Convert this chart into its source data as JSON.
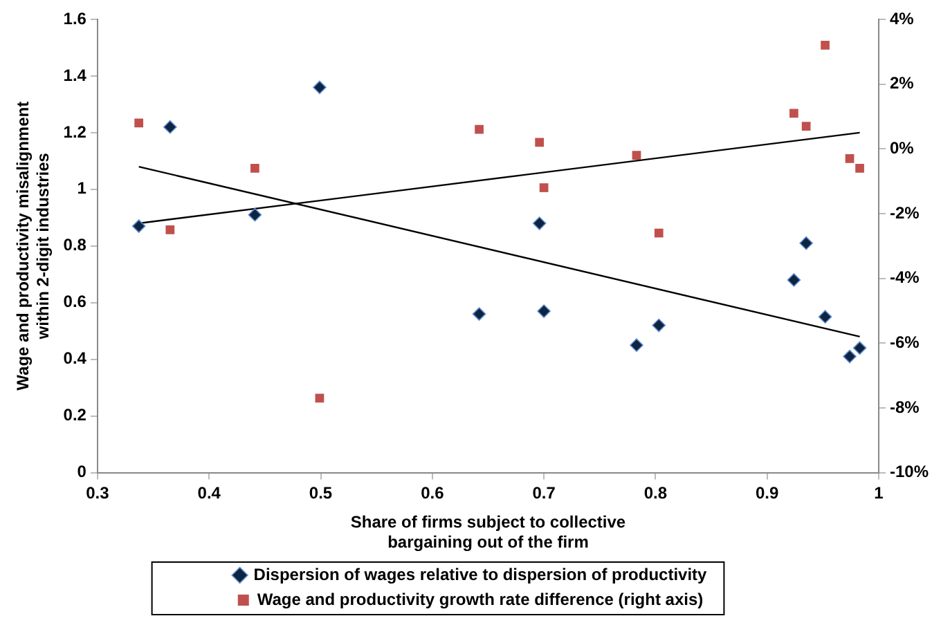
{
  "chart_data": {
    "type": "scatter",
    "xlabel": "Share of firms subject to collective bargaining out of the firm",
    "ylabel": "Wage and productivity misalignment within 2-digit industries",
    "xlim": [
      0.3,
      1
    ],
    "xticks": [
      0.3,
      0.4,
      0.5,
      0.6,
      0.7,
      0.8,
      0.9,
      1
    ],
    "ylim": [
      0,
      1.6
    ],
    "yticks": [
      0,
      0.2,
      0.4,
      0.6,
      0.8,
      1,
      1.2,
      1.4,
      1.6
    ],
    "y2lim": [
      -10,
      4
    ],
    "y2ticks": [
      {
        "value": -10,
        "label": "-10%"
      },
      {
        "value": -8,
        "label": "-8%"
      },
      {
        "value": -6,
        "label": "-6%"
      },
      {
        "value": -4,
        "label": "-4%"
      },
      {
        "value": -2,
        "label": "-2%"
      },
      {
        "value": 0,
        "label": "0%"
      },
      {
        "value": 2,
        "label": "2%"
      },
      {
        "value": 4,
        "label": "4%"
      }
    ],
    "grid": false,
    "legend": "bottom",
    "series": [
      {
        "name": "Dispersion of wages relative to dispersion of productivity",
        "color": "#0f2440",
        "marker": "diamond",
        "x": [
          0.337,
          0.365,
          0.441,
          0.499,
          0.642,
          0.696,
          0.7,
          0.783,
          0.803,
          0.924,
          0.935,
          0.952,
          0.974,
          0.983
        ],
        "values": [
          0.87,
          1.22,
          0.91,
          1.36,
          0.56,
          0.88,
          0.57,
          0.45,
          0.52,
          0.68,
          0.81,
          0.55,
          0.41,
          0.44
        ]
      },
      {
        "name": "Wage and productivity growth rate difference (right axis)",
        "color": "#c0504d",
        "marker": "square",
        "axis": "y2",
        "x": [
          0.337,
          0.365,
          0.441,
          0.499,
          0.642,
          0.696,
          0.7,
          0.783,
          0.803,
          0.924,
          0.935,
          0.952,
          0.974,
          0.983
        ],
        "values": [
          0.8,
          -2.5,
          -0.6,
          -7.7,
          0.6,
          0.2,
          -1.2,
          -0.2,
          -2.6,
          1.1,
          0.7,
          3.2,
          -0.3,
          -0.6
        ]
      },
      {
        "type": "line",
        "color": "#000000",
        "marker": "none",
        "x": [
          0.337,
          0.983
        ],
        "values": [
          1.08,
          0.48
        ]
      },
      {
        "type": "line",
        "color": "#000000",
        "marker": "none",
        "axis": "y2",
        "x": [
          0.337,
          0.983
        ],
        "values": [
          -2.3,
          0.5
        ]
      }
    ]
  }
}
